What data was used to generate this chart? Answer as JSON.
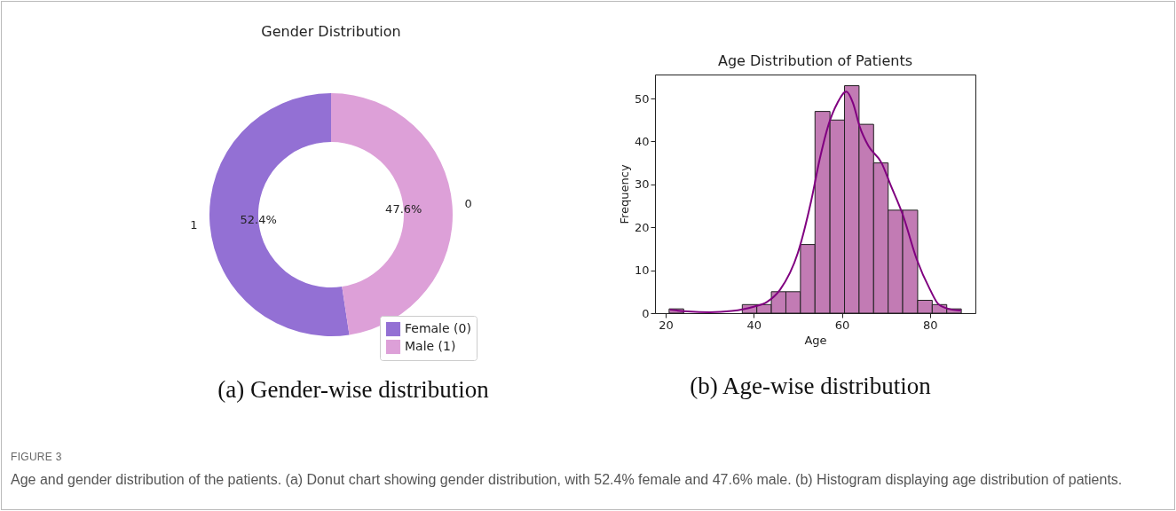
{
  "chart_data": [
    {
      "type": "donut",
      "title": "Gender Distribution",
      "categories": [
        "Female (0)",
        "Male (1)"
      ],
      "values": [
        52.4,
        47.6
      ],
      "colors": [
        "#9370d4",
        "#dda0d8"
      ],
      "value_labels": [
        "52.4%",
        "47.6%"
      ],
      "legend": "bottom right",
      "annotations": [
        {
          "text": "1",
          "x": "Female (0)"
        },
        {
          "text": "0",
          "x": "Male (1)"
        },
        "(a) Gender-wise distribution",
        "FIGURE 3",
        "Age and gender distribution of the patients. (a) Donut chart showing gender distribution, with 52.4% female and 47.6% male. (b) Histogram displaying age distribution of patients."
      ]
    },
    {
      "type": "histogram",
      "title": "Age Distribution of Patients",
      "xlabel": "Age",
      "ylabel": "Frequency",
      "color": "#c27bb4",
      "bins": [
        20.8,
        24.1,
        27.4,
        30.7,
        34.1,
        37.4,
        40.7,
        44.0,
        47.3,
        50.6,
        53.9,
        57.3,
        60.6,
        63.9,
        67.2,
        70.5,
        73.8,
        77.2,
        80.5,
        83.8,
        87.1
      ],
      "values": [
        1,
        0,
        0,
        0,
        0,
        2,
        2,
        5,
        5,
        16,
        47,
        45,
        53,
        44,
        35,
        24,
        24,
        3,
        2,
        1
      ],
      "series": [
        {
          "type": "line",
          "color": "#800080",
          "x": [
            21,
            25,
            30,
            35,
            40,
            43,
            46,
            50,
            53,
            55,
            57,
            59,
            61,
            62.5,
            64,
            66,
            69,
            71,
            73.8,
            77,
            80,
            82,
            85,
            87
          ],
          "values": [
            0.8,
            0.4,
            0.2,
            0.5,
            1.5,
            2.6,
            5.5,
            14,
            26,
            36,
            44,
            49,
            51.6,
            49,
            43.6,
            39,
            35,
            30,
            23,
            12.5,
            5.5,
            2,
            0.8,
            0.6
          ]
        }
      ],
      "xlim": [
        17.6,
        90.3
      ],
      "ylim": [
        0,
        55.6
      ],
      "xticks": [
        20,
        40,
        60,
        80
      ],
      "yticks": [
        0,
        10,
        20,
        30,
        40,
        50
      ],
      "grid": false,
      "annotations": [
        "(b) Age-wise distribution"
      ]
    }
  ]
}
